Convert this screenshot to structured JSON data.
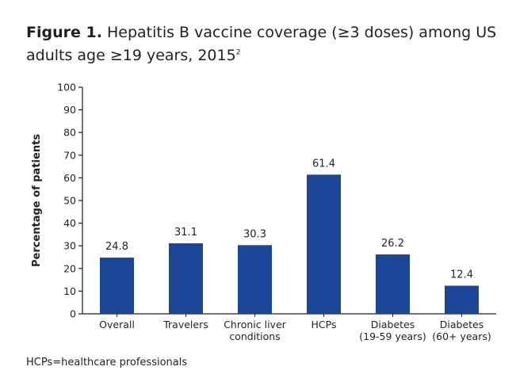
{
  "title": {
    "prefix": "Figure 1.",
    "text": "Hepatitis B vaccine coverage (≥3 doses) among US adults age ≥19 years, 2015",
    "superscript": "2"
  },
  "footnote": "HCPs=healthcare professionals",
  "colors": {
    "bar": "#1b4698",
    "axis": "#231f20"
  },
  "chart_data": {
    "type": "bar",
    "title": "Hepatitis B vaccine coverage (≥3 doses) among US adults age ≥19 years, 2015",
    "xlabel": "",
    "ylabel": "Percentage of patients",
    "ylim": [
      0,
      100
    ],
    "yticks": [
      0,
      10,
      20,
      30,
      40,
      50,
      60,
      70,
      80,
      90,
      100
    ],
    "grid": false,
    "categories": [
      [
        "Overall"
      ],
      [
        "Travelers"
      ],
      [
        "Chronic liver",
        "conditions"
      ],
      [
        "HCPs"
      ],
      [
        "Diabetes",
        "(19-59 years)"
      ],
      [
        "Diabetes",
        "(60+ years)"
      ]
    ],
    "values": [
      24.8,
      31.1,
      30.3,
      61.4,
      26.2,
      12.4
    ],
    "data_labels": [
      "24.8",
      "31.1",
      "30.3",
      "61.4",
      "26.2",
      "12.4"
    ]
  }
}
